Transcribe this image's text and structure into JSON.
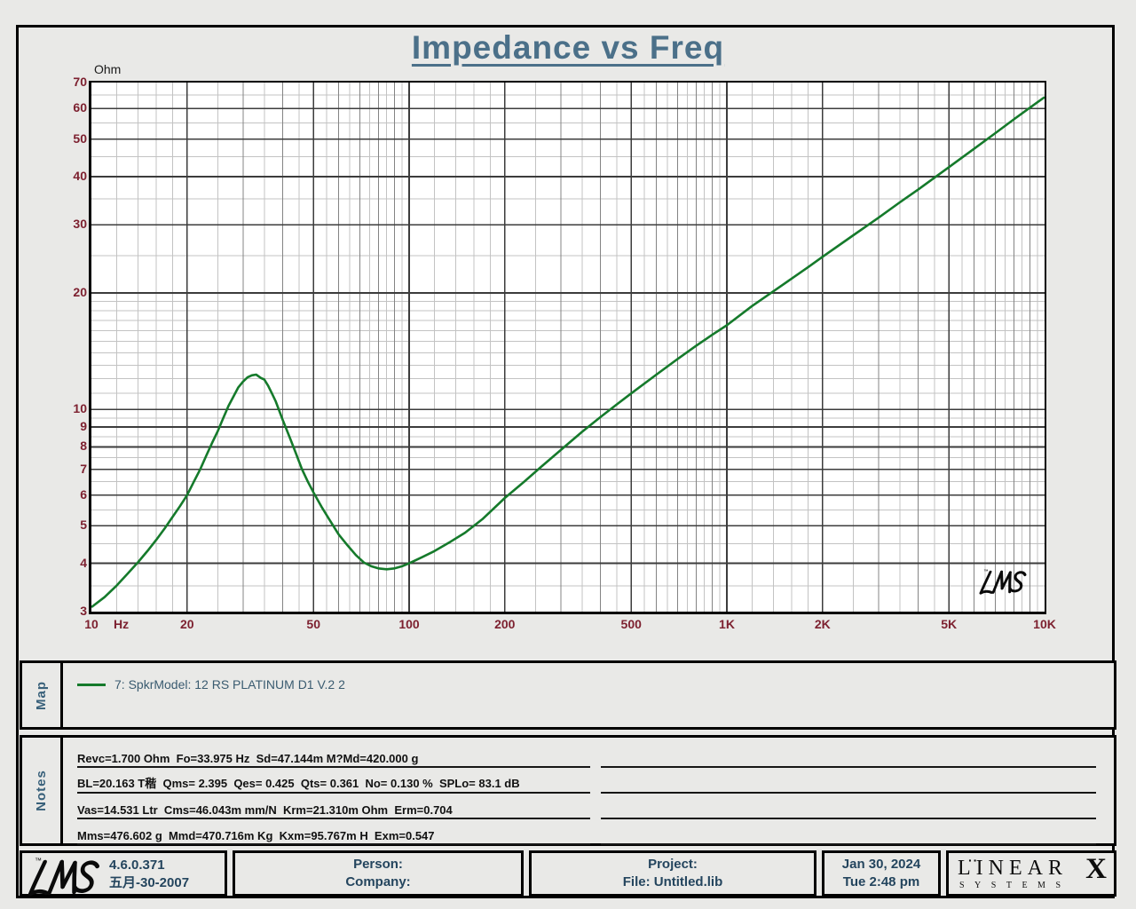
{
  "title": "Impedance vs Freq",
  "plot": {
    "y_unit": "Ohm",
    "x_unit": "Hz",
    "x_tick_labels": [
      "10",
      "20",
      "50",
      "100",
      "200",
      "500",
      "1K",
      "2K",
      "5K",
      "10K"
    ],
    "y_tick_labels": [
      "3",
      "4",
      "5",
      "6",
      "7",
      "8",
      "9",
      "10",
      "20",
      "30",
      "40",
      "50",
      "60",
      "70"
    ],
    "watermark": "LMS"
  },
  "chart_data": {
    "type": "line",
    "title": "Impedance vs Freq",
    "xlabel": "Hz",
    "ylabel": "Ohm",
    "x_scale": "log",
    "y_scale": "log",
    "xlim": [
      10,
      10000
    ],
    "ylim": [
      3,
      70
    ],
    "x_tick_values": [
      10,
      20,
      50,
      100,
      200,
      500,
      1000,
      2000,
      5000,
      10000
    ],
    "y_tick_values": [
      3,
      4,
      5,
      6,
      7,
      8,
      9,
      10,
      20,
      30,
      40,
      50,
      60,
      70
    ],
    "grid": {
      "x_minor_multipliers_light": [
        1.2,
        1.4,
        1.6,
        1.8,
        2.5,
        3.5,
        4.5,
        5.5,
        6.5,
        7.5,
        8.5,
        9.5
      ],
      "x_minor_multipliers_medium": [
        3,
        4,
        6,
        7,
        8,
        9
      ],
      "y_minor_values": [
        3.5,
        4.5,
        5.5,
        6.5,
        7.5,
        8.5,
        9.5,
        11,
        12,
        13,
        14,
        15,
        16,
        17,
        18,
        19,
        25,
        35,
        45,
        55,
        65
      ]
    },
    "series": [
      {
        "name": "7: SpkrModel: 12 RS PLATINUM  D1 V.2  2",
        "color": "#157a2b",
        "points": [
          [
            10,
            3.08
          ],
          [
            11,
            3.27
          ],
          [
            12,
            3.5
          ],
          [
            13,
            3.76
          ],
          [
            14,
            4.02
          ],
          [
            15,
            4.3
          ],
          [
            16,
            4.6
          ],
          [
            17,
            4.92
          ],
          [
            18,
            5.27
          ],
          [
            19,
            5.62
          ],
          [
            20,
            6.0
          ],
          [
            21,
            6.5
          ],
          [
            22,
            7.0
          ],
          [
            23,
            7.6
          ],
          [
            24,
            8.2
          ],
          [
            25,
            8.8
          ],
          [
            26,
            9.5
          ],
          [
            27,
            10.2
          ],
          [
            28,
            10.8
          ],
          [
            29,
            11.4
          ],
          [
            30,
            11.8
          ],
          [
            31,
            12.1
          ],
          [
            32,
            12.25
          ],
          [
            33,
            12.3
          ],
          [
            34.2,
            12.05
          ],
          [
            35,
            11.95
          ],
          [
            36,
            11.5
          ],
          [
            37,
            11.0
          ],
          [
            38,
            10.5
          ],
          [
            40,
            9.4
          ],
          [
            42,
            8.5
          ],
          [
            44,
            7.7
          ],
          [
            46,
            7.0
          ],
          [
            48,
            6.5
          ],
          [
            50,
            6.1
          ],
          [
            53,
            5.6
          ],
          [
            56,
            5.2
          ],
          [
            60,
            4.75
          ],
          [
            64,
            4.45
          ],
          [
            68,
            4.2
          ],
          [
            72,
            4.02
          ],
          [
            76,
            3.93
          ],
          [
            80,
            3.88
          ],
          [
            85,
            3.86
          ],
          [
            90,
            3.88
          ],
          [
            95,
            3.93
          ],
          [
            100,
            4.0
          ],
          [
            110,
            4.15
          ],
          [
            120,
            4.3
          ],
          [
            135,
            4.55
          ],
          [
            150,
            4.8
          ],
          [
            170,
            5.2
          ],
          [
            200,
            5.9
          ],
          [
            230,
            6.5
          ],
          [
            260,
            7.1
          ],
          [
            300,
            7.85
          ],
          [
            350,
            8.75
          ],
          [
            400,
            9.55
          ],
          [
            450,
            10.3
          ],
          [
            500,
            11.0
          ],
          [
            600,
            12.3
          ],
          [
            700,
            13.5
          ],
          [
            800,
            14.6
          ],
          [
            900,
            15.6
          ],
          [
            1000,
            16.5
          ],
          [
            1200,
            18.5
          ],
          [
            1500,
            21.0
          ],
          [
            1800,
            23.3
          ],
          [
            2000,
            24.8
          ],
          [
            2500,
            28.2
          ],
          [
            3000,
            31.3
          ],
          [
            3500,
            34.3
          ],
          [
            4000,
            37.0
          ],
          [
            5000,
            42.3
          ],
          [
            6000,
            47.2
          ],
          [
            7000,
            51.8
          ],
          [
            8000,
            56.2
          ],
          [
            9000,
            60.3
          ],
          [
            10000,
            64.2
          ]
        ]
      }
    ]
  },
  "map": {
    "label": "Map",
    "legend": [
      {
        "text": "7: SpkrModel: 12 RS PLATINUM  D1 V.2  2",
        "color": "#157a2b"
      }
    ]
  },
  "notes": {
    "label": "Notes",
    "lines": [
      "Revc=1.700 Ohm  Fo=33.975 Hz  Sd=47.144m M?Md=420.000 g",
      "BL=20.163 T稭  Qms= 2.395  Qes= 0.425  Qts= 0.361  No= 0.130 %  SPLo= 83.1 dB",
      "Vas=14.531 Ltr  Cms=46.043m mm/N  Krm=21.310m Ohm  Erm=0.704",
      "Mms=476.602 g  Mmd=470.716m Kg  Kxm=95.767m H  Exm=0.547"
    ],
    "blank_line_count": 4
  },
  "footer": {
    "logo": "LMS",
    "version": "4.6.0.371",
    "version_date": "五月-30-2007",
    "person_label": "Person:",
    "company_label": "Company:",
    "project_label": "Project:",
    "file_label": "File: Untitled.lib",
    "date": "Jan 30, 2024",
    "time": "Tue  2:48 pm",
    "brand_top": "LINEAR",
    "brand_x": "X",
    "brand_bottom": "SYSTEMS"
  },
  "colors": {
    "curve": "#157a2b",
    "axis_label": "#7d2130",
    "title": "#4b7089",
    "grid_major": "#3c3c3c",
    "grid_medium": "#848484",
    "grid_light": "#c3c3c3"
  }
}
